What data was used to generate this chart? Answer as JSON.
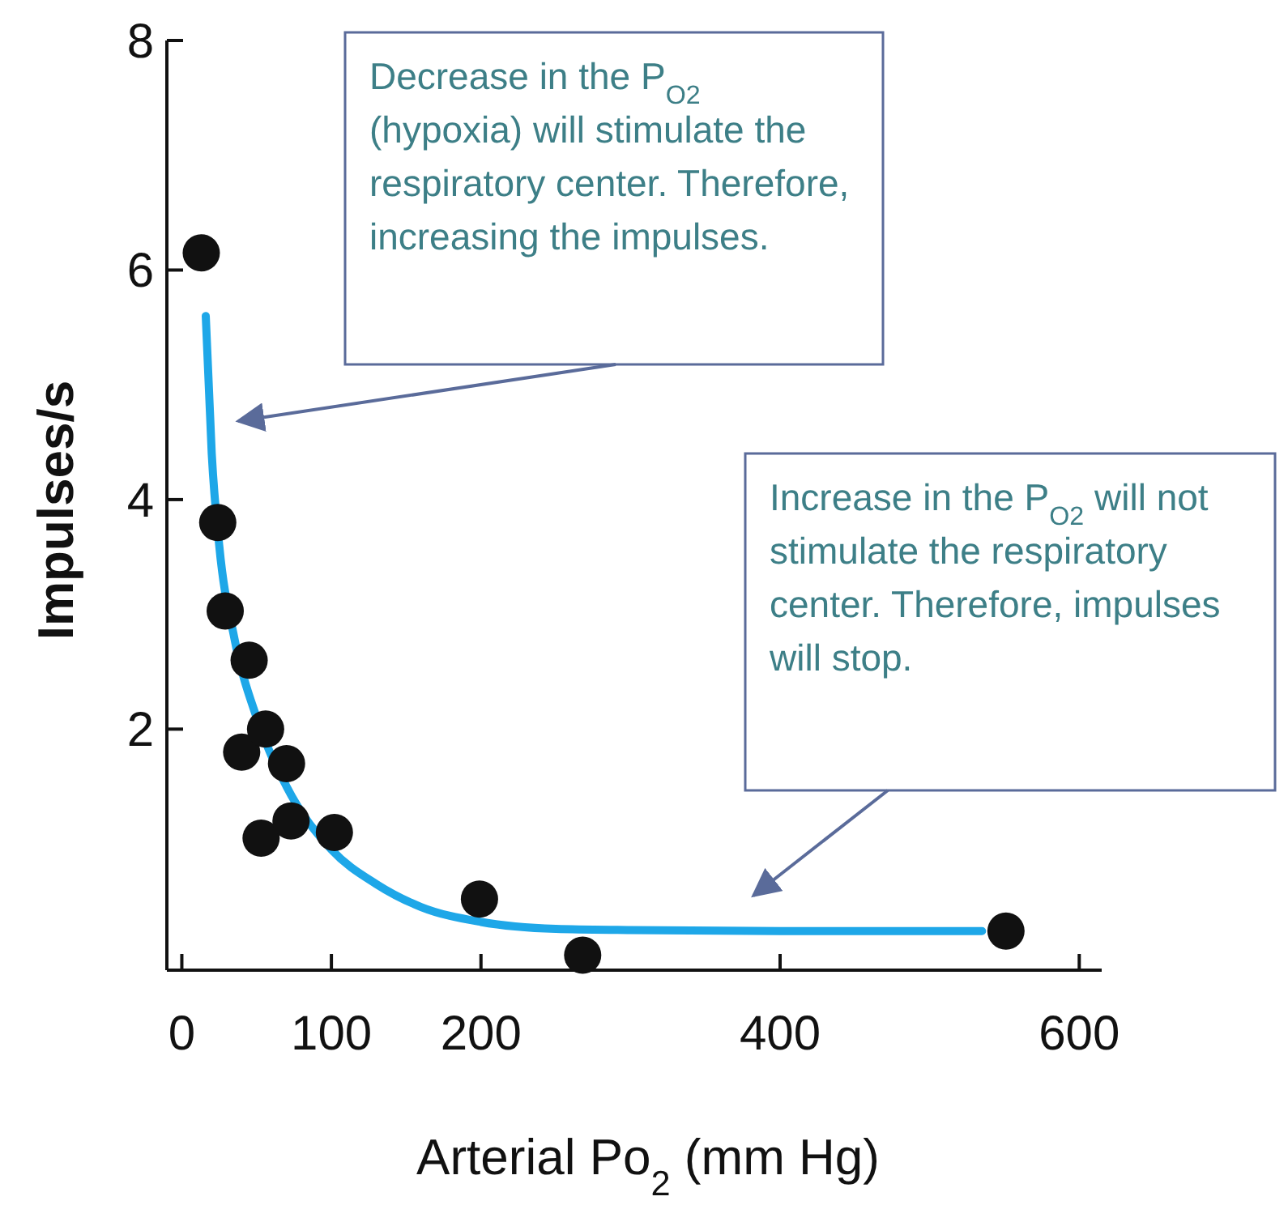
{
  "chart_data": {
    "type": "scatter",
    "xlabel": "Arterial Po$_{2}$ (mm Hg)",
    "ylabel": "Impulses/s",
    "xlim": [
      -10,
      615
    ],
    "ylim": [
      -0.1,
      8
    ],
    "xticks": [
      0,
      100,
      200,
      400,
      600
    ],
    "yticks": [
      2,
      4,
      6,
      8
    ],
    "grid": false,
    "series": [
      {
        "type": "line",
        "color": "#1ea7e8",
        "x": [
          16,
          20,
          25,
          35,
          50,
          70,
          100,
          130,
          160,
          200,
          250,
          300,
          400,
          535
        ],
        "values": [
          5.6,
          4.4,
          3.6,
          2.8,
          2.1,
          1.5,
          0.95,
          0.65,
          0.45,
          0.32,
          0.26,
          0.25,
          0.24,
          0.24
        ]
      },
      {
        "marker": "circle",
        "color": "#111111",
        "x": [
          13,
          24,
          29,
          45,
          40,
          56,
          53,
          70,
          73,
          102,
          199,
          268,
          551
        ],
        "values": [
          6.15,
          3.8,
          3.03,
          2.6,
          1.8,
          2.0,
          1.05,
          1.7,
          1.2,
          1.1,
          0.52,
          0.03,
          0.24
        ]
      }
    ],
    "annotations": [
      "Decrease in the P$_{O2}$ (hypoxia) will stimulate the respiratory center. Therefore, increasing the impulses.",
      "Increase in the P$_{O2}$ will not stimulate the respiratory center. Therefore, impulses will stop."
    ]
  }
}
